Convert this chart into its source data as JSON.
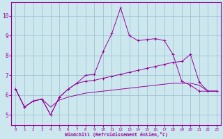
{
  "title": "",
  "xlabel": "Windchill (Refroidissement éolien,°C)",
  "ylabel": "",
  "background_color": "#cce8ee",
  "line_color": "#990099",
  "grid_color": "#99bbcc",
  "xlim": [
    -0.5,
    23.5
  ],
  "ylim": [
    4.5,
    10.7
  ],
  "xticks": [
    0,
    1,
    2,
    3,
    4,
    5,
    6,
    7,
    8,
    9,
    10,
    11,
    12,
    13,
    14,
    15,
    16,
    17,
    18,
    19,
    20,
    21,
    22,
    23
  ],
  "yticks": [
    5,
    6,
    7,
    8,
    9,
    10
  ],
  "line1_x": [
    0,
    1,
    2,
    3,
    4,
    5,
    6,
    7,
    8,
    9,
    10,
    11,
    12,
    13,
    14,
    15,
    16,
    17,
    18,
    19,
    20,
    21,
    22,
    23
  ],
  "line1_y": [
    6.3,
    5.4,
    5.7,
    5.8,
    5.4,
    5.75,
    5.9,
    6.0,
    6.1,
    6.15,
    6.2,
    6.25,
    6.3,
    6.35,
    6.4,
    6.45,
    6.5,
    6.55,
    6.6,
    6.6,
    6.6,
    6.5,
    6.2,
    6.2
  ],
  "line2_x": [
    0,
    1,
    2,
    3,
    4,
    5,
    6,
    7,
    8,
    9,
    10,
    11,
    12,
    13,
    14,
    15,
    16,
    17,
    18,
    19,
    20,
    21,
    22,
    23
  ],
  "line2_y": [
    6.3,
    5.4,
    5.7,
    5.8,
    5.0,
    5.9,
    6.3,
    6.6,
    7.0,
    7.05,
    8.2,
    9.1,
    10.4,
    9.0,
    8.75,
    8.8,
    8.85,
    8.75,
    8.05,
    6.7,
    6.5,
    6.2,
    6.2,
    6.2
  ],
  "line3_x": [
    0,
    1,
    2,
    3,
    4,
    5,
    6,
    7,
    8,
    9,
    10,
    11,
    12,
    13,
    14,
    15,
    16,
    17,
    18,
    19,
    20,
    21,
    22,
    23
  ],
  "line3_y": [
    6.3,
    5.4,
    5.7,
    5.8,
    5.0,
    5.9,
    6.3,
    6.6,
    6.7,
    6.75,
    6.85,
    6.95,
    7.05,
    7.15,
    7.25,
    7.35,
    7.45,
    7.55,
    7.65,
    7.7,
    8.05,
    6.65,
    6.2,
    6.2
  ]
}
